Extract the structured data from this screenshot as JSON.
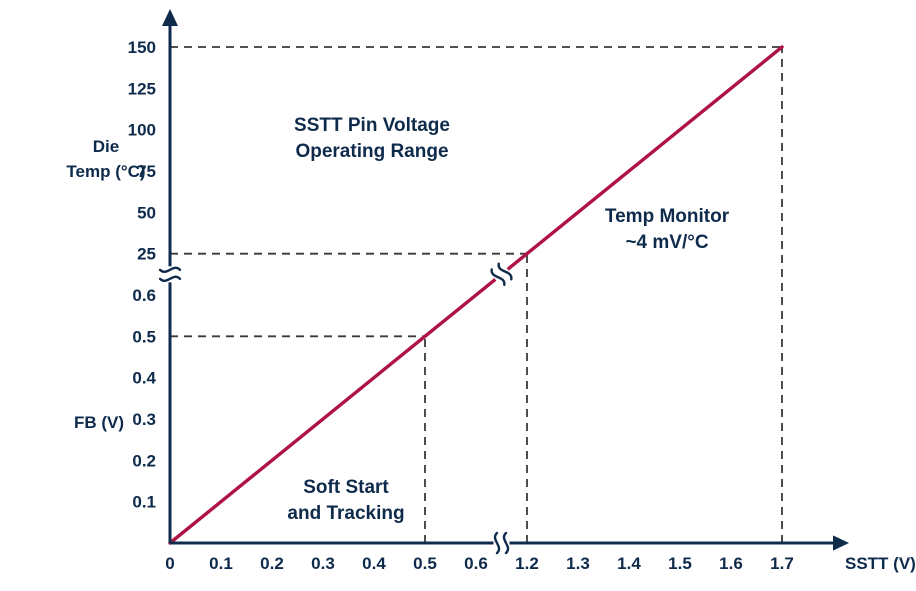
{
  "chart_data": {
    "type": "line",
    "x_axis": {
      "label": "SSTT (V)",
      "ticks_before_break": [
        "0",
        "0.1",
        "0.2",
        "0.3",
        "0.4",
        "0.5",
        "0.6"
      ],
      "ticks_after_break": [
        "1.2",
        "1.3",
        "1.4",
        "1.5",
        "1.6",
        "1.7"
      ],
      "range": [
        0,
        1.7
      ],
      "break_between": [
        "0.6",
        "1.2"
      ]
    },
    "y_axis": {
      "lower": {
        "label": "FB (V)",
        "ticks": [
          "0.1",
          "0.2",
          "0.3",
          "0.4",
          "0.5",
          "0.6"
        ],
        "range": [
          0,
          0.6
        ]
      },
      "upper": {
        "label_lines": [
          "Die",
          "Temp (°C)"
        ],
        "ticks": [
          "25",
          "50",
          "75",
          "100",
          "125",
          "150"
        ],
        "range": [
          25,
          150
        ]
      },
      "break_between": [
        "0.6",
        "25"
      ]
    },
    "series": [
      {
        "name": "sstt-transfer-line",
        "color": "#af1244",
        "segments": [
          {
            "region": "soft-start-and-tracking",
            "y_units": "FB (V)",
            "points": [
              [
                0,
                0
              ],
              [
                0.5,
                0.5
              ],
              [
                0.6,
                0.6
              ]
            ]
          },
          {
            "region": "temp-monitor",
            "y_units": "Die Temp (°C)",
            "points": [
              [
                1.2,
                25
              ],
              [
                1.7,
                150
              ]
            ]
          }
        ]
      }
    ],
    "guides": [
      {
        "x": "0.5",
        "y": "0.5"
      },
      {
        "x": "1.2",
        "y": "25"
      },
      {
        "x": "1.7",
        "y": "150"
      }
    ],
    "annotations": [
      {
        "id": "operating-range",
        "lines": [
          "SSTT Pin Voltage",
          "Operating Range"
        ]
      },
      {
        "id": "temp-monitor",
        "lines": [
          "Temp Monitor",
          "~4 mV/°C"
        ]
      },
      {
        "id": "soft-start",
        "lines": [
          "Soft Start",
          "and Tracking"
        ]
      }
    ],
    "axis_breaks": [
      "x",
      "y",
      "line"
    ],
    "colors": {
      "axis": "#0f2b4c",
      "text": "#0f2b4c",
      "series_line": "#af1244",
      "dashed_guide": "#3a3a3a",
      "background": "#ffffff"
    }
  }
}
